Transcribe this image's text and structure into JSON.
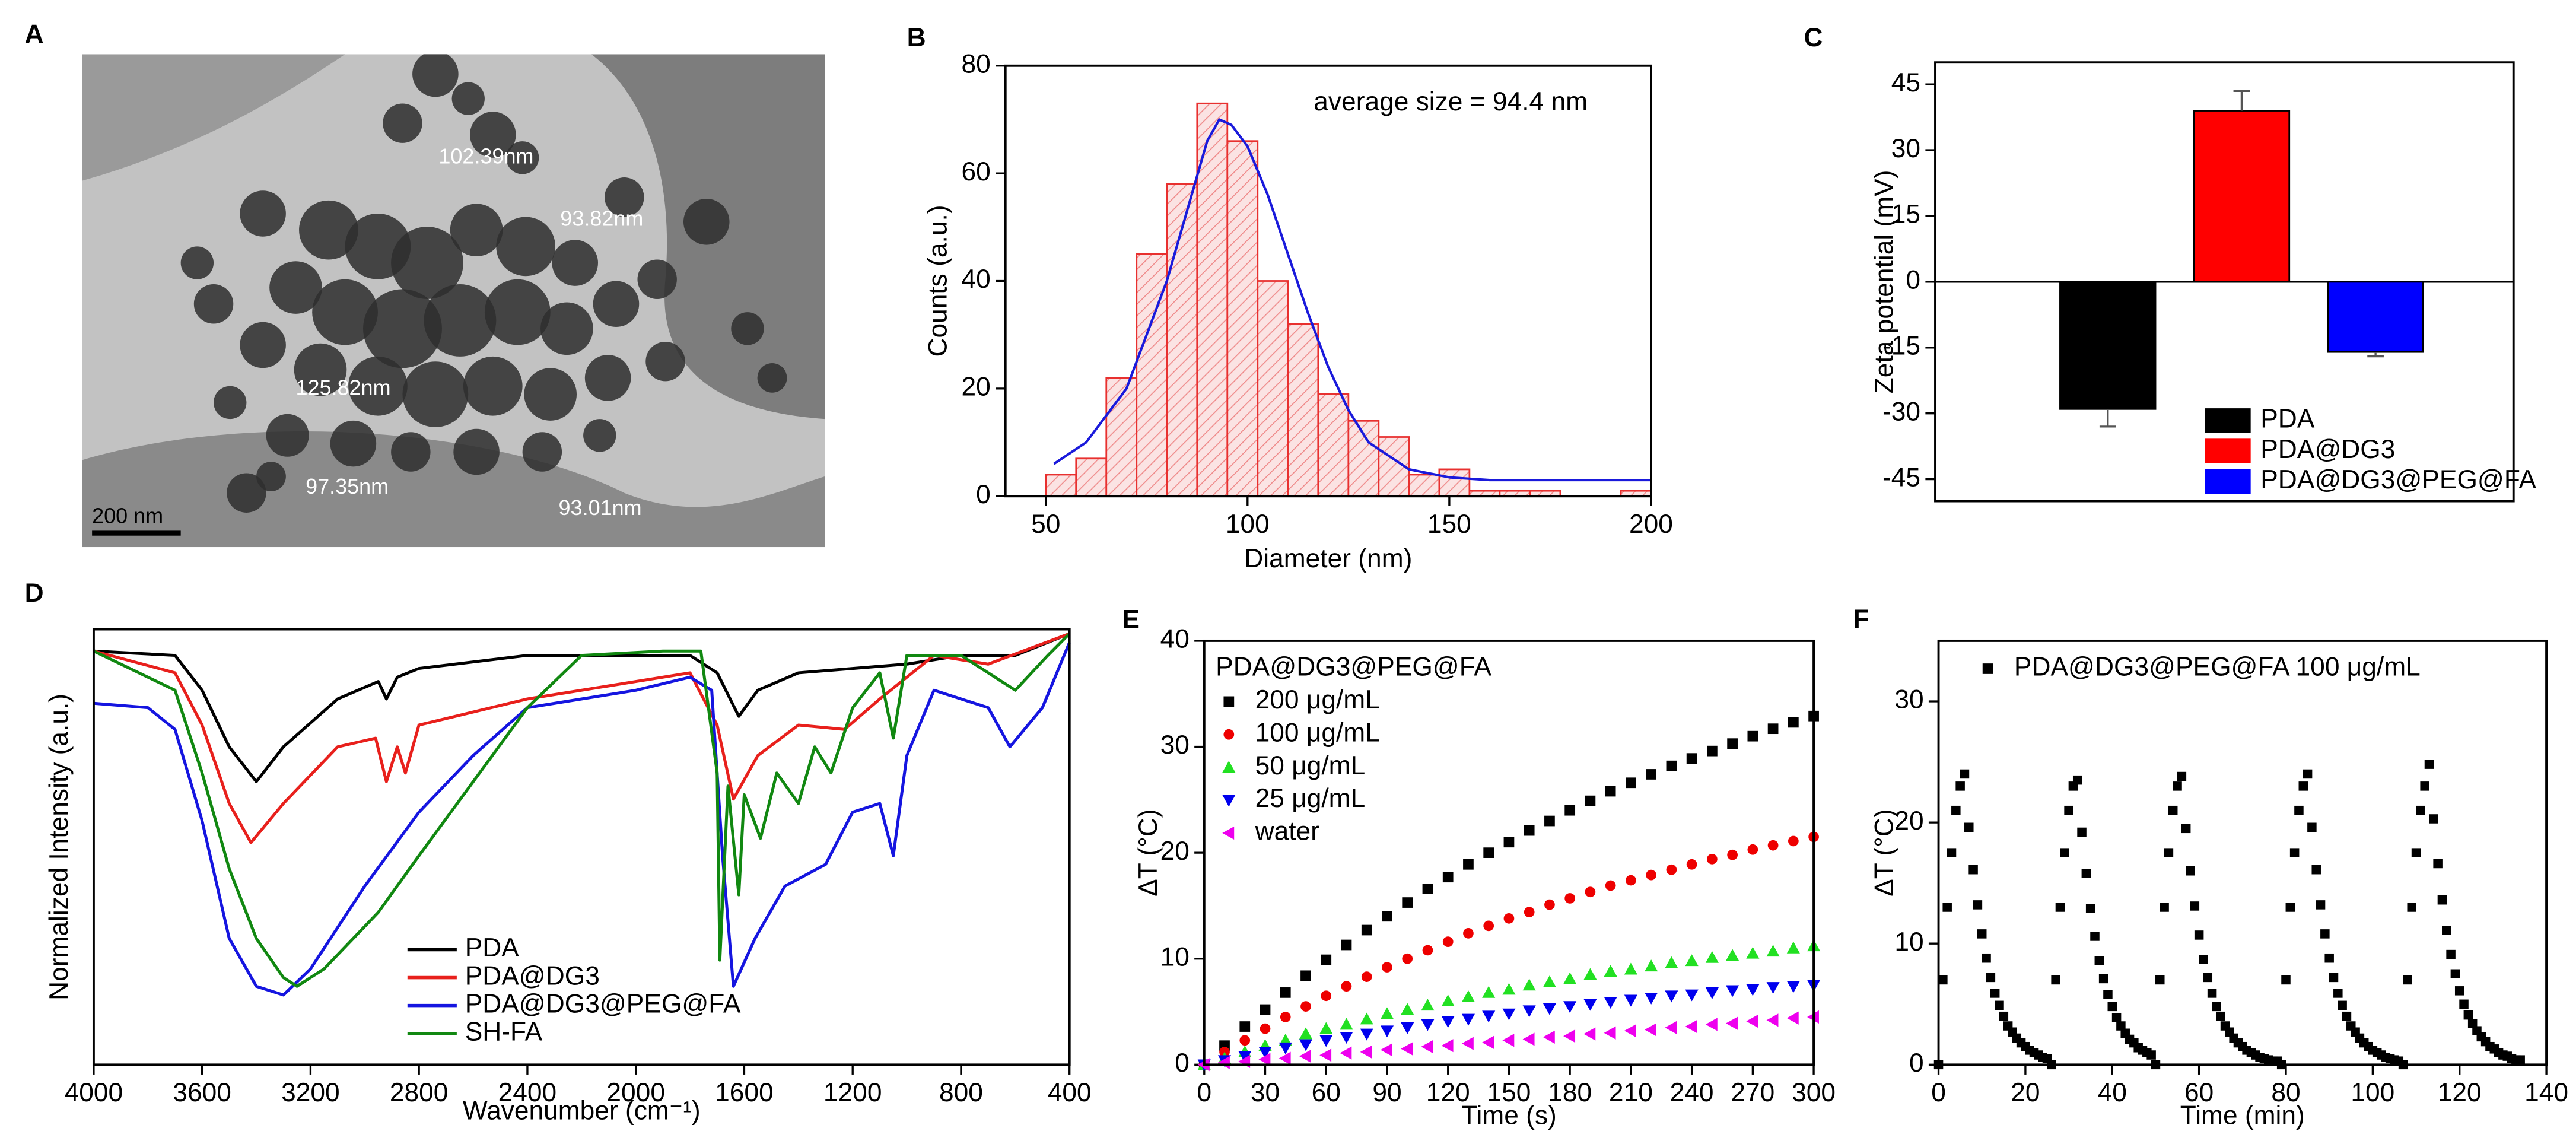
{
  "tem_image": {
    "panel": "A",
    "labels": [
      "102.39nm",
      "93.82nm",
      "125.82nm",
      "97.35nm",
      "93.01nm"
    ],
    "scale_bar": "200 nm"
  },
  "chart_data": [
    {
      "panel": "B",
      "type": "histogram",
      "bins": [
        50,
        57.5,
        65,
        72.5,
        80,
        87.5,
        95,
        102.5,
        110,
        117.5,
        125,
        132.5,
        140,
        147.5,
        155,
        162.5,
        170,
        177.5,
        185,
        192.5,
        200
      ],
      "values": [
        4,
        7,
        22,
        45,
        58,
        73,
        66,
        40,
        32,
        19,
        14,
        11,
        4,
        5,
        1,
        1,
        1,
        0,
        0,
        1
      ],
      "color": "#e8302f",
      "fit": {
        "x": [
          52,
          60,
          70,
          80,
          85,
          90,
          93,
          96,
          100,
          105,
          110,
          115,
          120,
          125,
          130,
          140,
          150,
          160,
          180,
          200
        ],
        "values": [
          6,
          10,
          20,
          40,
          53,
          66,
          70,
          69,
          65,
          56,
          45,
          34,
          24,
          16,
          10,
          5,
          3.5,
          3,
          3,
          3
        ],
        "color": "#1a1adb"
      },
      "annotation": "average size = 94.4 nm",
      "xlabel": "Diameter (nm)",
      "ylabel": "Counts (a.u.)",
      "xlim": [
        40,
        200
      ],
      "ylim": [
        0,
        80
      ],
      "xticks": [
        50,
        100,
        150,
        200
      ],
      "yticks": [
        0,
        20,
        40,
        60,
        80
      ]
    },
    {
      "panel": "C",
      "type": "bar",
      "categories": [
        "PDA",
        "PDA@DG3",
        "PDA@DG3@PEG@FA"
      ],
      "values": [
        -29,
        39,
        -16
      ],
      "errors": [
        4,
        4.5,
        1
      ],
      "colors": [
        "#000000",
        "#ff0000",
        "#0000ff"
      ],
      "ylabel": "Zeta potential (mV)",
      "ylim": [
        -50,
        50
      ],
      "yticks": [
        -45,
        -30,
        -15,
        0,
        15,
        30,
        45
      ]
    },
    {
      "panel": "D",
      "type": "line",
      "xlabel": "Wavenumber (cm⁻¹)",
      "ylabel": "Normalized Intensity (a.u.)",
      "xlim": [
        4000,
        400
      ],
      "ylim": [
        0,
        1
      ],
      "xticks": [
        4000,
        3600,
        3200,
        2800,
        2400,
        2000,
        1600,
        1200,
        800,
        400
      ],
      "series": [
        {
          "name": "PDA",
          "color": "#000000",
          "x": [
            4000,
            3700,
            3600,
            3500,
            3400,
            3300,
            3100,
            2950,
            2920,
            2880,
            2800,
            2400,
            2000,
            1800,
            1700,
            1620,
            1550,
            1400,
            1200,
            1000,
            800,
            600,
            400
          ],
          "values": [
            0.95,
            0.94,
            0.86,
            0.73,
            0.65,
            0.73,
            0.84,
            0.88,
            0.84,
            0.89,
            0.91,
            0.94,
            0.94,
            0.94,
            0.9,
            0.8,
            0.86,
            0.9,
            0.91,
            0.92,
            0.94,
            0.94,
            0.99
          ]
        },
        {
          "name": "PDA@DG3",
          "color": "#e8201c",
          "x": [
            4000,
            3700,
            3600,
            3500,
            3420,
            3300,
            3100,
            2960,
            2920,
            2880,
            2850,
            2800,
            2400,
            2000,
            1800,
            1700,
            1640,
            1550,
            1400,
            1230,
            1100,
            900,
            700,
            400
          ],
          "values": [
            0.95,
            0.9,
            0.78,
            0.6,
            0.51,
            0.6,
            0.73,
            0.75,
            0.65,
            0.73,
            0.67,
            0.78,
            0.84,
            0.88,
            0.9,
            0.78,
            0.61,
            0.71,
            0.78,
            0.77,
            0.84,
            0.94,
            0.92,
            0.99
          ]
        },
        {
          "name": "PDA@DG3@PEG@FA",
          "color": "#1515e0",
          "x": [
            4000,
            3800,
            3700,
            3600,
            3500,
            3400,
            3300,
            3200,
            3000,
            2800,
            2600,
            2400,
            2000,
            1800,
            1720,
            1680,
            1640,
            1560,
            1450,
            1300,
            1200,
            1100,
            1050,
            1000,
            900,
            700,
            620,
            500,
            400
          ],
          "values": [
            0.83,
            0.82,
            0.77,
            0.56,
            0.29,
            0.18,
            0.16,
            0.22,
            0.41,
            0.58,
            0.71,
            0.82,
            0.86,
            0.89,
            0.86,
            0.48,
            0.18,
            0.29,
            0.41,
            0.46,
            0.58,
            0.6,
            0.48,
            0.71,
            0.86,
            0.82,
            0.73,
            0.82,
            0.97
          ]
        },
        {
          "name": "SH-FA",
          "color": "#118811",
          "x": [
            4000,
            3700,
            3600,
            3500,
            3400,
            3300,
            3250,
            3150,
            2950,
            2800,
            2600,
            2400,
            2200,
            1900,
            1760,
            1700,
            1690,
            1660,
            1620,
            1600,
            1540,
            1480,
            1400,
            1340,
            1280,
            1200,
            1100,
            1050,
            1000,
            900,
            800,
            600,
            480,
            400
          ],
          "values": [
            0.95,
            0.86,
            0.67,
            0.45,
            0.29,
            0.2,
            0.18,
            0.22,
            0.35,
            0.48,
            0.65,
            0.82,
            0.94,
            0.95,
            0.95,
            0.67,
            0.24,
            0.64,
            0.39,
            0.62,
            0.52,
            0.67,
            0.6,
            0.73,
            0.67,
            0.82,
            0.9,
            0.75,
            0.94,
            0.94,
            0.94,
            0.86,
            0.94,
            0.99
          ]
        }
      ]
    },
    {
      "panel": "E",
      "type": "scatter",
      "legend_title": "PDA@DG3@PEG@FA",
      "xlabel": "Time (s)",
      "ylabel": "ΔT (°C)",
      "xlim": [
        0,
        300
      ],
      "ylim": [
        0,
        40
      ],
      "xticks": [
        0,
        30,
        60,
        90,
        120,
        150,
        180,
        210,
        240,
        270,
        300
      ],
      "yticks": [
        0,
        10,
        20,
        30,
        40
      ],
      "x": [
        0,
        10,
        20,
        30,
        40,
        50,
        60,
        70,
        80,
        90,
        100,
        110,
        120,
        130,
        140,
        150,
        160,
        170,
        180,
        190,
        200,
        210,
        220,
        230,
        240,
        250,
        260,
        270,
        280,
        290,
        300
      ],
      "series": [
        {
          "name": "200 μg/mL",
          "color": "#000000",
          "marker": "square",
          "values": [
            0,
            1.8,
            3.6,
            5.2,
            6.8,
            8.4,
            9.9,
            11.3,
            12.7,
            14,
            15.3,
            16.6,
            17.7,
            18.9,
            20,
            21,
            22.1,
            23,
            24,
            24.9,
            25.8,
            26.6,
            27.4,
            28.2,
            28.9,
            29.6,
            30.3,
            31,
            31.7,
            32.3,
            32.9
          ]
        },
        {
          "name": "100 μg/mL",
          "color": "#ee0000",
          "marker": "circle",
          "values": [
            0,
            1.2,
            2.3,
            3.4,
            4.5,
            5.5,
            6.5,
            7.4,
            8.3,
            9.2,
            10,
            10.8,
            11.6,
            12.4,
            13.1,
            13.8,
            14.4,
            15.1,
            15.7,
            16.3,
            16.9,
            17.4,
            17.9,
            18.4,
            18.9,
            19.4,
            19.8,
            20.3,
            20.7,
            21.1,
            21.5
          ]
        },
        {
          "name": "50 μg/mL",
          "color": "#22e022",
          "marker": "triangle-up",
          "values": [
            0,
            0.6,
            1.2,
            1.8,
            2.3,
            2.9,
            3.4,
            3.8,
            4.3,
            4.8,
            5.2,
            5.6,
            6,
            6.4,
            6.8,
            7.1,
            7.5,
            7.8,
            8.1,
            8.5,
            8.8,
            9,
            9.3,
            9.6,
            9.8,
            10.1,
            10.3,
            10.5,
            10.7,
            11,
            11.2
          ]
        },
        {
          "name": "25 μg/mL",
          "color": "#0000ee",
          "marker": "triangle-down",
          "values": [
            0,
            0.4,
            0.8,
            1.2,
            1.6,
            1.9,
            2.3,
            2.6,
            2.9,
            3.2,
            3.5,
            3.8,
            4.1,
            4.3,
            4.6,
            4.8,
            5.1,
            5.3,
            5.5,
            5.7,
            5.9,
            6.1,
            6.3,
            6.5,
            6.6,
            6.8,
            7,
            7.1,
            7.3,
            7.4,
            7.5
          ]
        },
        {
          "name": "water",
          "color": "#ee00ee",
          "marker": "triangle-left",
          "values": [
            0,
            0.2,
            0.3,
            0.5,
            0.6,
            0.8,
            0.9,
            1.1,
            1.2,
            1.4,
            1.5,
            1.7,
            1.8,
            2,
            2.1,
            2.3,
            2.4,
            2.6,
            2.7,
            2.9,
            3,
            3.2,
            3.3,
            3.5,
            3.6,
            3.8,
            3.9,
            4.1,
            4.2,
            4.4,
            4.5
          ]
        }
      ]
    },
    {
      "panel": "F",
      "type": "scatter",
      "xlabel": "Time (min)",
      "ylabel": "ΔT (°C)",
      "xlim": [
        0,
        140
      ],
      "ylim": [
        0,
        35
      ],
      "xticks": [
        0,
        20,
        40,
        60,
        80,
        100,
        120,
        140
      ],
      "yticks": [
        0,
        10,
        20,
        30
      ],
      "x": [
        0,
        1,
        2,
        3,
        4,
        5,
        6,
        7,
        8,
        9,
        10,
        11,
        12,
        13,
        14,
        15,
        16,
        17,
        18,
        19,
        20,
        21,
        22,
        23,
        24,
        25,
        26,
        27,
        28,
        29,
        30,
        31,
        32,
        33,
        34,
        35,
        36,
        37,
        38,
        39,
        40,
        41,
        42,
        43,
        44,
        45,
        46,
        47,
        48,
        49,
        50,
        51,
        52,
        53,
        54,
        55,
        56,
        57,
        58,
        59,
        60,
        61,
        62,
        63,
        64,
        65,
        66,
        67,
        68,
        69,
        70,
        71,
        72,
        73,
        74,
        75,
        76,
        77,
        78,
        79,
        80,
        81,
        82,
        83,
        84,
        85,
        86,
        87,
        88,
        89,
        90,
        91,
        92,
        93,
        94,
        95,
        96,
        97,
        98,
        99,
        100,
        101,
        102,
        103,
        104,
        105,
        106,
        107,
        108,
        109,
        110,
        111,
        112,
        113,
        114,
        115,
        116,
        117,
        118,
        119,
        120,
        121,
        122,
        123,
        124,
        125,
        126,
        127,
        128,
        129,
        130,
        131,
        132,
        133,
        134
      ],
      "series": [
        {
          "name": "PDA@DG3@PEG@FA 100 μg/mL",
          "color": "#000000",
          "marker": "square",
          "values": [
            0,
            7,
            13,
            17.5,
            21,
            23,
            24,
            19.6,
            16.1,
            13.2,
            10.8,
            8.8,
            7.2,
            5.9,
            4.9,
            4,
            3.2,
            2.7,
            2.2,
            1.8,
            1.5,
            1.2,
            1,
            0.8,
            0.6,
            0.5,
            0,
            7,
            13,
            17.5,
            21,
            23,
            23.5,
            19.2,
            15.8,
            12.9,
            10.6,
            8.6,
            7.1,
            5.8,
            4.8,
            3.9,
            3.2,
            2.6,
            2.1,
            1.8,
            1.4,
            1.2,
            1,
            0.8,
            0,
            7,
            13,
            17.5,
            21,
            23,
            23.8,
            19.5,
            16,
            13.1,
            10.7,
            8.7,
            7.2,
            5.9,
            4.8,
            4,
            3.2,
            2.7,
            2.2,
            1.8,
            1.5,
            1.2,
            1,
            0.8,
            0.6,
            0.5,
            0.4,
            0.3,
            0.3,
            0,
            7,
            13,
            17.5,
            21,
            23,
            24,
            19.6,
            16.1,
            13.2,
            10.8,
            8.8,
            7.2,
            5.9,
            4.9,
            4,
            3.2,
            2.7,
            2.2,
            1.8,
            1.5,
            1.2,
            1,
            0.8,
            0.6,
            0.5,
            0.4,
            0.3,
            0,
            7,
            13,
            17.5,
            21,
            23,
            24.8,
            20.3,
            16.6,
            13.6,
            11.1,
            9.1,
            7.5,
            6.1,
            5,
            4.1,
            3.4,
            2.8,
            2.3,
            1.9,
            1.5,
            1.3,
            1,
            0.8,
            0.7,
            0.5,
            0.4,
            0.4
          ]
        }
      ]
    }
  ]
}
